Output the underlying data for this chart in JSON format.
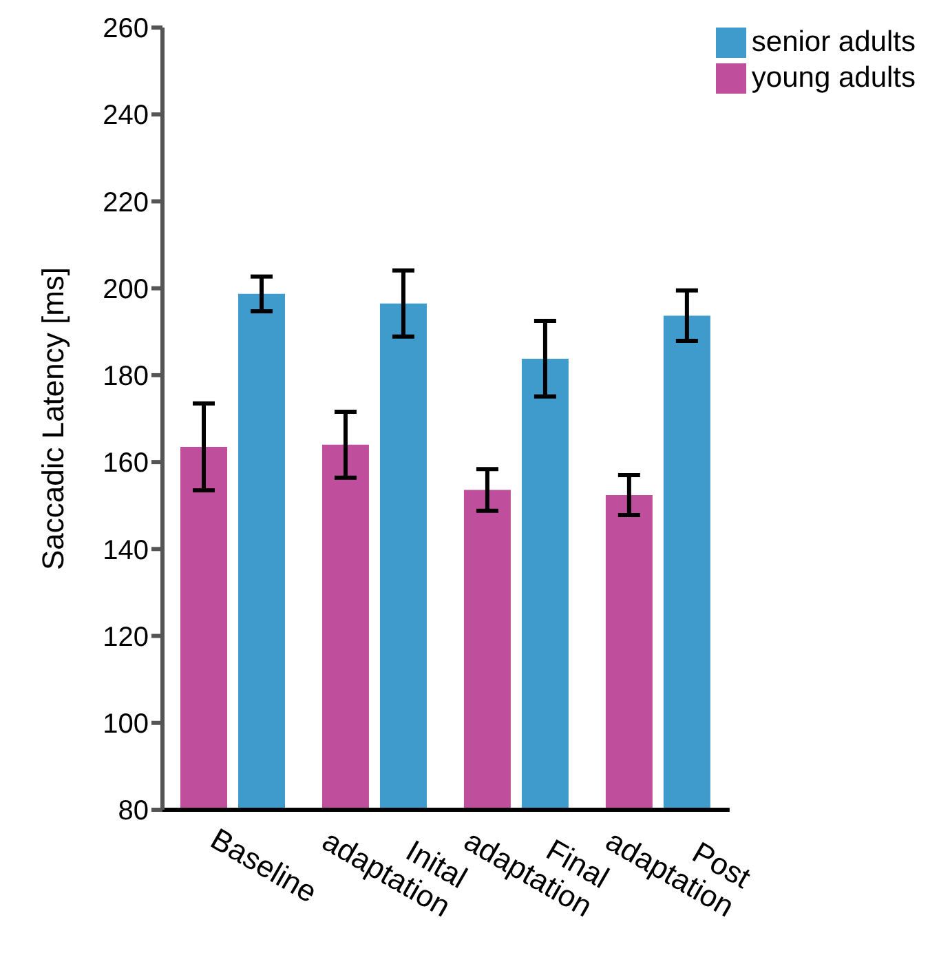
{
  "chart_data": {
    "type": "bar",
    "ylabel": "Saccadic Latency [ms]",
    "categories": [
      "Baseline",
      "Inital adaptation",
      "Final adaptation",
      "Post adaptation"
    ],
    "series": [
      {
        "name": "young adults",
        "color": "#bf4f9c",
        "values": [
          163.5,
          164,
          153.6,
          152.4
        ],
        "errors": [
          10,
          7.6,
          4.8,
          4.6
        ]
      },
      {
        "name": "senior adults",
        "color": "#3f9bcc",
        "values": [
          198.7,
          196.5,
          183.8,
          193.7
        ],
        "errors": [
          4,
          7.6,
          8.7,
          5.8
        ]
      }
    ],
    "ylim": [
      80,
      260
    ],
    "yticks": [
      80,
      100,
      120,
      140,
      160,
      180,
      200,
      220,
      240,
      260
    ],
    "grid": false,
    "legend": "top right"
  }
}
